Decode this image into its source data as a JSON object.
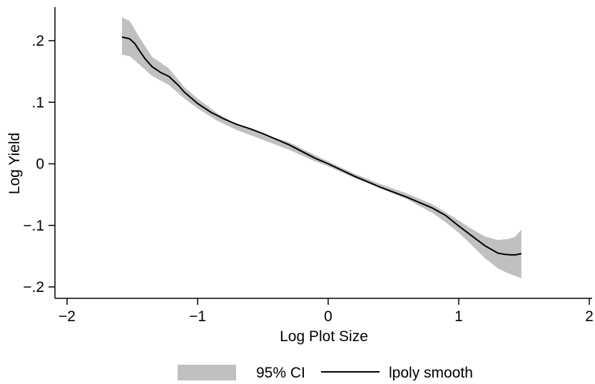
{
  "chart_data": {
    "type": "line",
    "title": "",
    "xlabel": "Log Plot Size",
    "ylabel": "Log Yield",
    "xlim": [
      -2.05,
      2.05
    ],
    "ylim": [
      -0.21,
      0.25
    ],
    "xticks": [
      -2,
      -1,
      0,
      1,
      2
    ],
    "xtick_labels": [
      "−2",
      "−1",
      "0",
      "1",
      "2"
    ],
    "yticks": [
      0.2,
      0.1,
      0,
      -0.1,
      -0.2
    ],
    "ytick_labels": [
      ".2",
      ".1",
      "0",
      "−.1",
      "−.2"
    ],
    "grid": false,
    "legend_position": "bottom",
    "colors": {
      "band": "#c0c0c0",
      "line": "#000000",
      "axis": "#000000"
    },
    "series": [
      {
        "name": "95% CI",
        "kind": "band",
        "x": [
          -1.58,
          -1.52,
          -1.45,
          -1.35,
          -1.22,
          -1.1,
          -1.0,
          -0.85,
          -0.7,
          -0.5,
          -0.3,
          -0.1,
          0.0,
          0.2,
          0.4,
          0.6,
          0.8,
          0.9,
          1.0,
          1.1,
          1.2,
          1.3,
          1.38,
          1.43,
          1.48
        ],
        "lower": [
          0.177,
          0.175,
          0.162,
          0.143,
          0.128,
          0.106,
          0.09,
          0.07,
          0.055,
          0.039,
          0.023,
          0.004,
          -0.004,
          -0.023,
          -0.04,
          -0.057,
          -0.08,
          -0.095,
          -0.112,
          -0.132,
          -0.153,
          -0.17,
          -0.178,
          -0.182,
          -0.186
        ],
        "upper": [
          0.238,
          0.232,
          0.207,
          0.174,
          0.155,
          0.124,
          0.106,
          0.082,
          0.064,
          0.049,
          0.035,
          0.014,
          0.004,
          -0.016,
          -0.033,
          -0.048,
          -0.066,
          -0.079,
          -0.092,
          -0.106,
          -0.118,
          -0.124,
          -0.122,
          -0.119,
          -0.107
        ]
      },
      {
        "name": "lpoly smooth",
        "kind": "line",
        "x": [
          -1.58,
          -1.52,
          -1.48,
          -1.45,
          -1.4,
          -1.35,
          -1.28,
          -1.22,
          -1.15,
          -1.1,
          -1.0,
          -0.9,
          -0.8,
          -0.7,
          -0.6,
          -0.5,
          -0.4,
          -0.3,
          -0.2,
          -0.1,
          0.0,
          0.1,
          0.2,
          0.3,
          0.4,
          0.5,
          0.6,
          0.7,
          0.8,
          0.9,
          1.0,
          1.1,
          1.2,
          1.3,
          1.35,
          1.4,
          1.43,
          1.48
        ],
        "y": [
          0.206,
          0.203,
          0.195,
          0.185,
          0.17,
          0.158,
          0.148,
          0.142,
          0.128,
          0.116,
          0.098,
          0.084,
          0.073,
          0.064,
          0.057,
          0.049,
          0.04,
          0.031,
          0.02,
          0.009,
          0.0,
          -0.01,
          -0.02,
          -0.029,
          -0.038,
          -0.046,
          -0.054,
          -0.063,
          -0.072,
          -0.084,
          -0.101,
          -0.117,
          -0.133,
          -0.145,
          -0.147,
          -0.148,
          -0.148,
          -0.146
        ]
      }
    ]
  }
}
